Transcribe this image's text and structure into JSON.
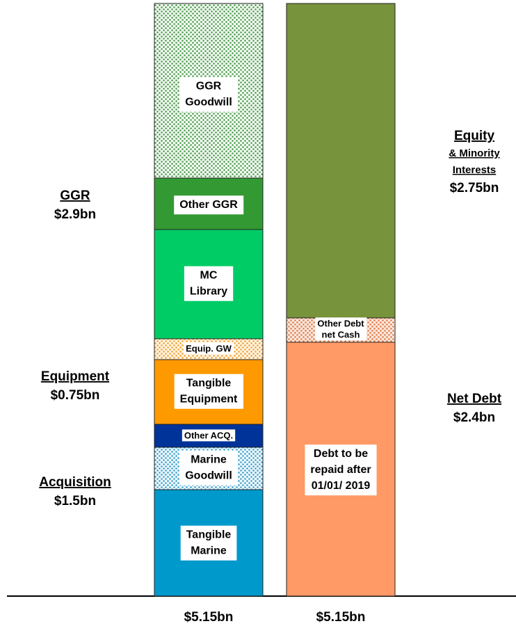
{
  "left_bar": {
    "segments": [
      {
        "label": [
          "GGR",
          "Goodwill"
        ]
      },
      {
        "label": [
          "Other GGR"
        ]
      },
      {
        "label": [
          "MC",
          "Library"
        ]
      },
      {
        "label": [
          "Equip. GW"
        ]
      },
      {
        "label": [
          "Tangible",
          "Equipment"
        ]
      },
      {
        "label": [
          "Other ACQ."
        ]
      },
      {
        "label": [
          "Marine",
          "Goodwill"
        ]
      },
      {
        "label": [
          "Tangible",
          "Marine"
        ]
      }
    ],
    "total": "$5.15bn"
  },
  "right_bar": {
    "segments": [
      {
        "label": []
      },
      {
        "label": [
          "Other Debt",
          "net Cash"
        ]
      },
      {
        "label": [
          "Debt to be",
          "repaid after",
          "01/01/ 2019"
        ]
      }
    ],
    "total": "$5.15bn"
  },
  "left_labels": [
    {
      "title": [
        "GGR"
      ],
      "value": "$2.9bn"
    },
    {
      "title": [
        "Equipment"
      ],
      "value": "$0.75bn"
    },
    {
      "title": [
        "Acquisition"
      ],
      "value": "$1.5bn"
    }
  ],
  "right_labels": [
    {
      "title": [
        "Equity",
        "& Minority",
        "Interests"
      ],
      "value": "$2.75bn"
    },
    {
      "title": [
        "Net Debt"
      ],
      "value": "$2.4bn"
    }
  ]
}
